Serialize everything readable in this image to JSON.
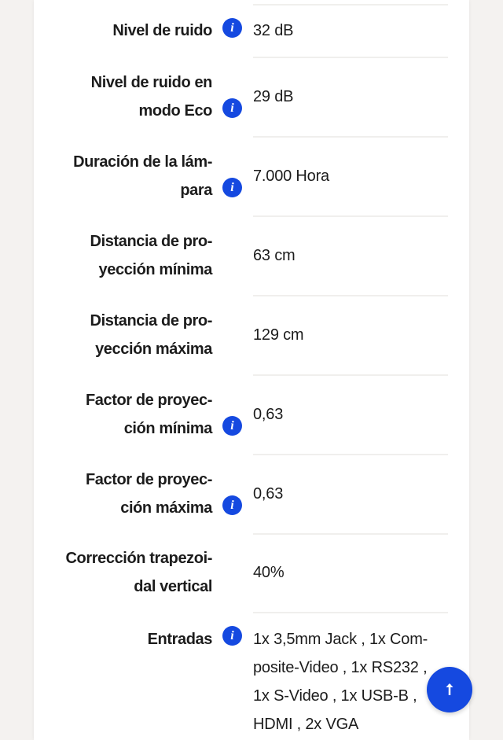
{
  "specs": {
    "rows": [
      {
        "label": [
          "Nivel de ruido"
        ],
        "info": true,
        "value": [
          "32 dB"
        ]
      },
      {
        "label": [
          "Nivel de ruido en",
          "modo Eco"
        ],
        "info": true,
        "value": [
          "29 dB"
        ]
      },
      {
        "label": [
          "Duración de la lám-",
          "para"
        ],
        "info": true,
        "value": [
          "7.000 Hora"
        ]
      },
      {
        "label": [
          "Distancia de pro-",
          "yección mínima"
        ],
        "info": false,
        "value": [
          "63 cm"
        ]
      },
      {
        "label": [
          "Distancia de pro-",
          "yección máxima"
        ],
        "info": false,
        "value": [
          "129 cm"
        ]
      },
      {
        "label": [
          "Factor de proyec-",
          "ción mínima"
        ],
        "info": true,
        "value": [
          "0,63"
        ]
      },
      {
        "label": [
          "Factor de proyec-",
          "ción máxima"
        ],
        "info": true,
        "value": [
          "0,63"
        ]
      },
      {
        "label": [
          "Corrección trapezoi-",
          "dal vertical"
        ],
        "info": false,
        "value": [
          "40%"
        ]
      },
      {
        "label": [
          "Entradas"
        ],
        "info": true,
        "value": [
          "1x 3,5mm Jack , 1x Com-",
          "posite-Video , 1x RS232 ,",
          "1x S-Video , 1x USB-B ,",
          "HDMI , 2x VGA"
        ]
      }
    ]
  }
}
